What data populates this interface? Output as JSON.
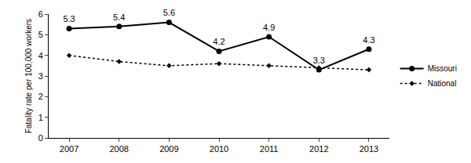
{
  "chart_data": {
    "type": "line",
    "y_label": "Fatality rate per 100,000 workers",
    "categories": [
      "2007",
      "2008",
      "2009",
      "2010",
      "2011",
      "2012",
      "2013"
    ],
    "series": [
      {
        "name": "Missouri",
        "color": "#000000",
        "marker": "circle",
        "line_style": "solid",
        "data_labels": true,
        "values": [
          5.3,
          5.4,
          5.6,
          4.2,
          4.9,
          3.3,
          4.3
        ]
      },
      {
        "name": "National",
        "color": "#000000",
        "marker": "diamond",
        "line_style": "dot",
        "data_labels": false,
        "values": [
          4.0,
          3.7,
          3.5,
          3.6,
          3.5,
          3.4,
          3.3
        ]
      }
    ],
    "ylim": [
      0,
      6
    ],
    "yticks": [
      0,
      1,
      2,
      3,
      4,
      5,
      6
    ],
    "grid": false,
    "legend": "right"
  }
}
